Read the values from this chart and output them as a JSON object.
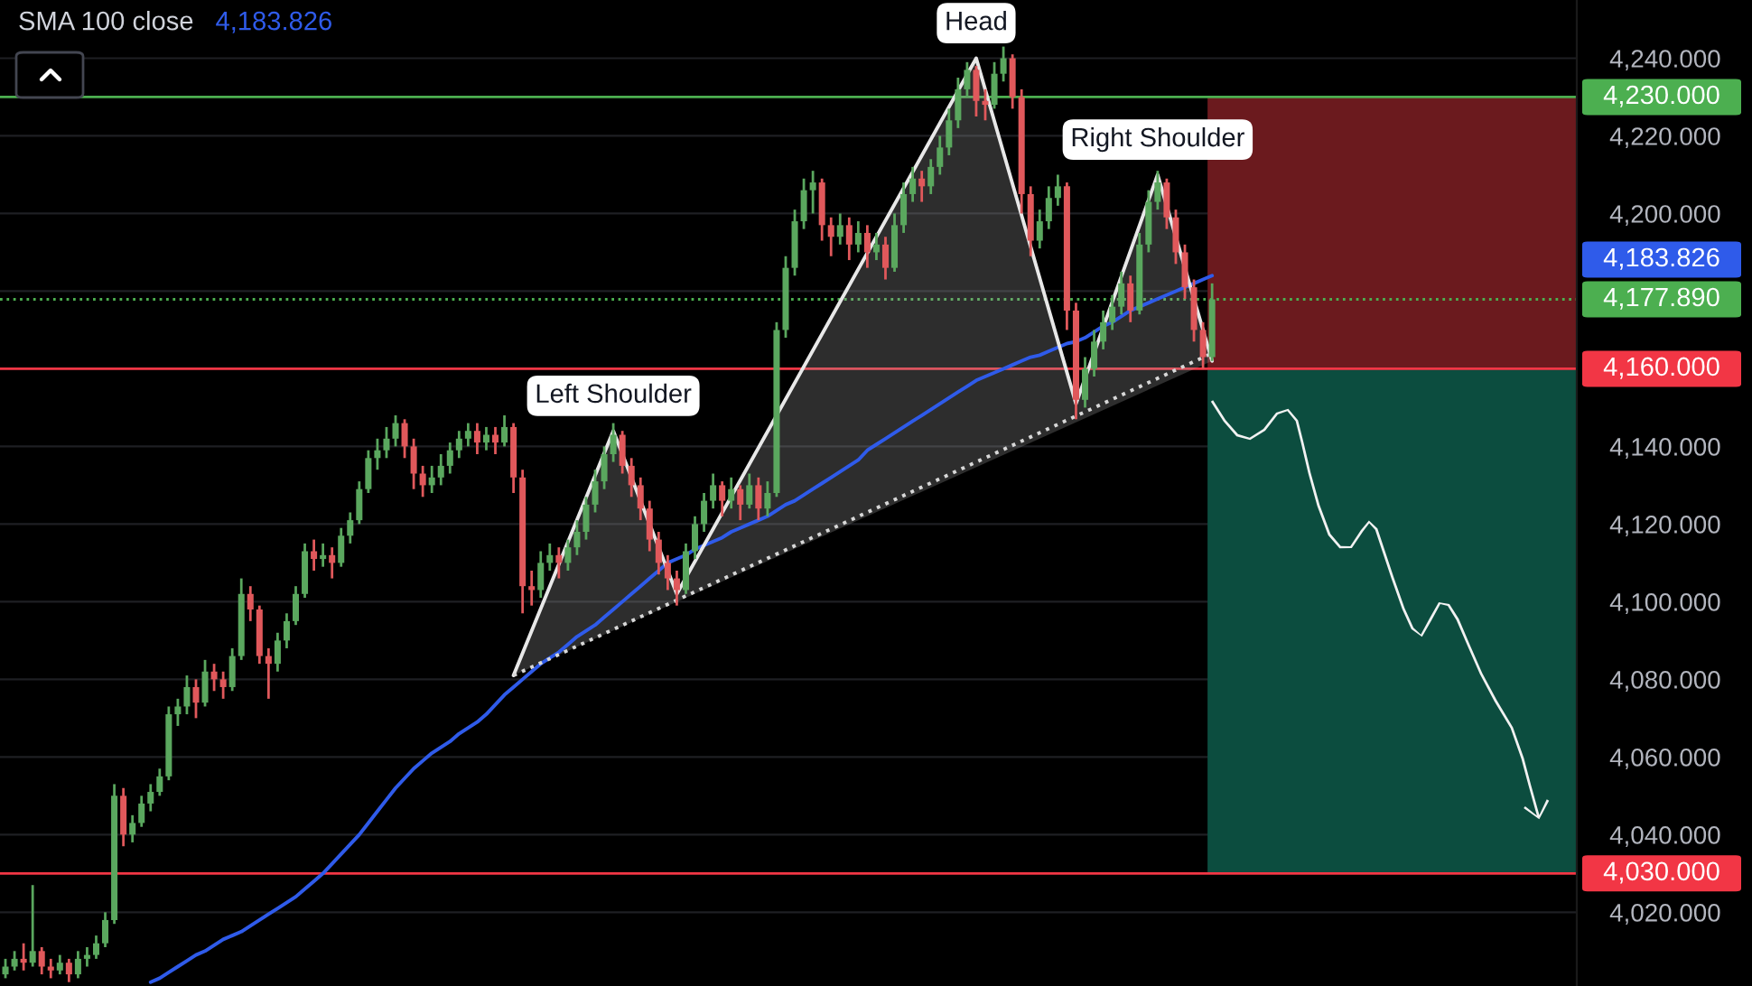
{
  "chart_data": {
    "type": "candlestick",
    "title": "SMA 100 close",
    "categories": [
      null,
      null,
      null,
      null,
      null,
      null,
      null,
      null,
      null,
      null,
      null,
      null,
      null,
      null,
      null,
      null,
      null,
      null,
      null,
      null,
      null,
      null,
      null,
      null,
      null,
      null,
      null,
      null,
      null,
      null,
      null,
      null,
      null,
      null,
      null,
      null,
      null,
      null,
      null,
      null,
      null,
      null,
      null,
      null,
      null,
      null,
      null,
      null,
      null,
      null,
      null,
      null,
      null,
      null,
      null,
      null,
      null,
      null,
      null,
      null,
      null,
      null,
      null,
      null,
      null,
      null,
      null,
      null,
      null,
      null,
      null,
      null,
      null,
      null,
      null,
      null,
      null,
      null,
      null,
      null,
      null,
      null,
      null,
      null,
      null,
      null,
      null,
      null,
      null,
      null,
      null,
      null,
      null,
      null,
      null,
      null,
      null,
      null,
      null,
      null,
      null,
      null,
      null,
      null,
      null,
      null,
      null,
      null,
      null,
      null,
      null,
      null,
      null,
      null,
      null,
      null,
      null,
      null,
      null,
      null,
      null,
      null,
      null,
      null,
      null,
      null,
      null,
      null,
      null,
      null,
      null,
      null,
      null,
      null
    ],
    "ohlc": [
      [
        4004,
        4008,
        4003,
        4006
      ],
      [
        4006,
        4010,
        4005,
        4008
      ],
      [
        4008,
        4012,
        4005,
        4007
      ],
      [
        4007,
        4027,
        4006,
        4010
      ],
      [
        4010,
        4011,
        4004,
        4006
      ],
      [
        4006,
        4008,
        4003,
        4005
      ],
      [
        4005,
        4009,
        4004,
        4007
      ],
      [
        4007,
        4008,
        4002,
        4004
      ],
      [
        4004,
        4010,
        4003,
        4008
      ],
      [
        4008,
        4011,
        4006,
        4009
      ],
      [
        4009,
        4014,
        4008,
        4012
      ],
      [
        4012,
        4020,
        4011,
        4018
      ],
      [
        4018,
        4053,
        4017,
        4050
      ],
      [
        4050,
        4052,
        4037,
        4040
      ],
      [
        4040,
        4045,
        4038,
        4043
      ],
      [
        4043,
        4050,
        4042,
        4048
      ],
      [
        4048,
        4053,
        4046,
        4051
      ],
      [
        4051,
        4057,
        4050,
        4055
      ],
      [
        4055,
        4073,
        4054,
        4071
      ],
      [
        4071,
        4075,
        4068,
        4073
      ],
      [
        4073,
        4081,
        4071,
        4078
      ],
      [
        4078,
        4080,
        4070,
        4074
      ],
      [
        4074,
        4085,
        4073,
        4082
      ],
      [
        4082,
        4084,
        4077,
        4080
      ],
      [
        4080,
        4082,
        4075,
        4078
      ],
      [
        4078,
        4088,
        4077,
        4086
      ],
      [
        4086,
        4106,
        4085,
        4102
      ],
      [
        4102,
        4104,
        4095,
        4098
      ],
      [
        4098,
        4099,
        4084,
        4086
      ],
      [
        4086,
        4088,
        4075,
        4084
      ],
      [
        4084,
        4092,
        4082,
        4090
      ],
      [
        4090,
        4097,
        4088,
        4095
      ],
      [
        4095,
        4104,
        4094,
        4102
      ],
      [
        4102,
        4115,
        4101,
        4113
      ],
      [
        4113,
        4116,
        4108,
        4111
      ],
      [
        4111,
        4115,
        4109,
        4112
      ],
      [
        4112,
        4114,
        4106,
        4110
      ],
      [
        4110,
        4119,
        4109,
        4117
      ],
      [
        4117,
        4123,
        4115,
        4121
      ],
      [
        4121,
        4131,
        4120,
        4129
      ],
      [
        4129,
        4139,
        4128,
        4137
      ],
      [
        4137,
        4142,
        4134,
        4139
      ],
      [
        4139,
        4145,
        4137,
        4142
      ],
      [
        4142,
        4148,
        4140,
        4146
      ],
      [
        4146,
        4147,
        4137,
        4140
      ],
      [
        4140,
        4142,
        4129,
        4133
      ],
      [
        4133,
        4135,
        4127,
        4130
      ],
      [
        4130,
        4135,
        4128,
        4132
      ],
      [
        4132,
        4138,
        4130,
        4135
      ],
      [
        4135,
        4141,
        4133,
        4139
      ],
      [
        4139,
        4144,
        4137,
        4142
      ],
      [
        4142,
        4146,
        4140,
        4144
      ],
      [
        4144,
        4146,
        4138,
        4141
      ],
      [
        4141,
        4145,
        4139,
        4143
      ],
      [
        4143,
        4145,
        4138,
        4141
      ],
      [
        4141,
        4148,
        4140,
        4145
      ],
      [
        4145,
        4146,
        4128,
        4132
      ],
      [
        4132,
        4134,
        4097,
        4104
      ],
      [
        4104,
        4108,
        4099,
        4103
      ],
      [
        4103,
        4113,
        4101,
        4110
      ],
      [
        4110,
        4115,
        4108,
        4112
      ],
      [
        4112,
        4114,
        4106,
        4110
      ],
      [
        4110,
        4116,
        4108,
        4114
      ],
      [
        4114,
        4121,
        4112,
        4118
      ],
      [
        4118,
        4127,
        4116,
        4125
      ],
      [
        4125,
        4134,
        4123,
        4131
      ],
      [
        4131,
        4140,
        4129,
        4138
      ],
      [
        4138,
        4146,
        4136,
        4143
      ],
      [
        4143,
        4144,
        4133,
        4135
      ],
      [
        4135,
        4137,
        4127,
        4130
      ],
      [
        4130,
        4132,
        4121,
        4124
      ],
      [
        4124,
        4126,
        4113,
        4116
      ],
      [
        4116,
        4118,
        4107,
        4110
      ],
      [
        4110,
        4112,
        4103,
        4106
      ],
      [
        4106,
        4108,
        4099,
        4103
      ],
      [
        4103,
        4115,
        4102,
        4113
      ],
      [
        4113,
        4122,
        4111,
        4120
      ],
      [
        4120,
        4128,
        4118,
        4126
      ],
      [
        4126,
        4133,
        4124,
        4130
      ],
      [
        4130,
        4131,
        4122,
        4126
      ],
      [
        4126,
        4132,
        4124,
        4129
      ],
      [
        4129,
        4130,
        4121,
        4125
      ],
      [
        4125,
        4133,
        4124,
        4130
      ],
      [
        4130,
        4132,
        4121,
        4124
      ],
      [
        4124,
        4131,
        4122,
        4128
      ],
      [
        4128,
        4172,
        4127,
        4170
      ],
      [
        4170,
        4189,
        4168,
        4186
      ],
      [
        4186,
        4201,
        4184,
        4198
      ],
      [
        4198,
        4209,
        4196,
        4206
      ],
      [
        4206,
        4211,
        4200,
        4208
      ],
      [
        4208,
        4209,
        4193,
        4197
      ],
      [
        4197,
        4199,
        4189,
        4194
      ],
      [
        4194,
        4200,
        4192,
        4197
      ],
      [
        4197,
        4199,
        4188,
        4192
      ],
      [
        4192,
        4198,
        4190,
        4195
      ],
      [
        4195,
        4197,
        4186,
        4190
      ],
      [
        4190,
        4195,
        4188,
        4192
      ],
      [
        4192,
        4194,
        4183,
        4186
      ],
      [
        4186,
        4200,
        4185,
        4197
      ],
      [
        4197,
        4208,
        4195,
        4205
      ],
      [
        4205,
        4212,
        4203,
        4209
      ],
      [
        4209,
        4211,
        4203,
        4207
      ],
      [
        4207,
        4214,
        4205,
        4212
      ],
      [
        4212,
        4220,
        4210,
        4217
      ],
      [
        4217,
        4227,
        4215,
        4224
      ],
      [
        4224,
        4235,
        4222,
        4232
      ],
      [
        4232,
        4239,
        4230,
        4237
      ],
      [
        4237,
        4238,
        4225,
        4229
      ],
      [
        4229,
        4232,
        4224,
        4228
      ],
      [
        4228,
        4239,
        4227,
        4236
      ],
      [
        4236,
        4243,
        4234,
        4240
      ],
      [
        4240,
        4241,
        4227,
        4230
      ],
      [
        4230,
        4232,
        4200,
        4205
      ],
      [
        4205,
        4207,
        4189,
        4193
      ],
      [
        4193,
        4201,
        4191,
        4198
      ],
      [
        4198,
        4207,
        4196,
        4204
      ],
      [
        4204,
        4210,
        4202,
        4207
      ],
      [
        4207,
        4208,
        4170,
        4175
      ],
      [
        4175,
        4177,
        4147,
        4152
      ],
      [
        4152,
        4163,
        4150,
        4160
      ],
      [
        4160,
        4170,
        4158,
        4167
      ],
      [
        4167,
        4175,
        4165,
        4172
      ],
      [
        4172,
        4179,
        4170,
        4176
      ],
      [
        4176,
        4185,
        4174,
        4182
      ],
      [
        4182,
        4184,
        4172,
        4175
      ],
      [
        4175,
        4195,
        4174,
        4192
      ],
      [
        4192,
        4206,
        4190,
        4203
      ],
      [
        4203,
        4211,
        4201,
        4208
      ],
      [
        4208,
        4209,
        4196,
        4199
      ],
      [
        4199,
        4201,
        4187,
        4190
      ],
      [
        4190,
        4192,
        4178,
        4181
      ],
      [
        4181,
        4183,
        4167,
        4170
      ],
      [
        4170,
        4172,
        4160,
        4163
      ],
      [
        4163,
        4182,
        4162,
        4177.89
      ]
    ],
    "series": [
      {
        "type": "line",
        "color": "#2f5bea",
        "line_style": "solid",
        "values": [
          null,
          null,
          null,
          null,
          null,
          null,
          null,
          null,
          null,
          null,
          null,
          null,
          null,
          null,
          null,
          null,
          4002,
          4003,
          4004.5,
          4006,
          4007.5,
          4009,
          4010,
          4011.5,
          4013,
          4014,
          4015,
          4016.5,
          4018,
          4019.5,
          4021,
          4022.5,
          4024,
          4026,
          4028,
          4030,
          4032.5,
          4035,
          4037.5,
          4040,
          4043,
          4046,
          4049,
          4052,
          4054.5,
          4057,
          4059,
          4061,
          4062.5,
          4064,
          4066,
          4067.5,
          4069,
          4071,
          4073.5,
          4076,
          4078,
          4080,
          4082,
          4084,
          4085.5,
          4087,
          4089,
          4091,
          4092.5,
          4094,
          4096,
          4098,
          4100,
          4102,
          4104,
          4106,
          4108,
          4110,
          4111,
          4112,
          4113.5,
          4114.5,
          4115.5,
          4116.5,
          4118,
          4119,
          4120,
          4121,
          4122,
          4123.5,
          4125,
          4126,
          4127.5,
          4129,
          4130.5,
          4132,
          4133.5,
          4135,
          4136.5,
          4139,
          4140.5,
          4142,
          4143.5,
          4145,
          4146.5,
          4148,
          4149.5,
          4151,
          4152.5,
          4154,
          4155.5,
          4157,
          4158,
          4159,
          4160,
          4161,
          4162,
          4163,
          4163.5,
          4164.5,
          4165.5,
          4166.5,
          4167,
          4168,
          4169.5,
          4171,
          4172,
          4173.5,
          4175,
          4176,
          4177,
          4178,
          4179,
          4180,
          4181,
          4182,
          4183,
          4184
        ]
      },
      {
        "type": "line",
        "color": "#e8e8e8",
        "line_style": "solid",
        "values": [
          null,
          null,
          null,
          null,
          null,
          null,
          null,
          null,
          null,
          null,
          null,
          null,
          null,
          null,
          null,
          null,
          null,
          null,
          null,
          null,
          null,
          null,
          null,
          null,
          null,
          null,
          null,
          null,
          null,
          null,
          null,
          null,
          null,
          null,
          null,
          null,
          null,
          null,
          null,
          null,
          null,
          null,
          null,
          null,
          null,
          null,
          null,
          null,
          null,
          null,
          null,
          null,
          null,
          null,
          null,
          null,
          4081,
          null,
          null,
          null,
          null,
          null,
          null,
          null,
          null,
          null,
          null,
          4144,
          null,
          null,
          null,
          null,
          null,
          null,
          4102,
          null,
          null,
          null,
          null,
          null,
          null,
          null,
          null,
          null,
          null,
          null,
          null,
          null,
          null,
          null,
          null,
          null,
          null,
          null,
          null,
          null,
          null,
          null,
          null,
          null,
          null,
          null,
          null,
          null,
          null,
          null,
          null,
          4240,
          null,
          null,
          null,
          null,
          null,
          null,
          null,
          null,
          null,
          null,
          4151,
          null,
          null,
          null,
          null,
          null,
          null,
          null,
          null,
          4210,
          null,
          null,
          null,
          null,
          null,
          4162
        ]
      },
      {
        "type": "line",
        "color": "#d8d8d8",
        "line_style": "dotted",
        "values": [
          null,
          null,
          null,
          null,
          null,
          null,
          null,
          null,
          null,
          null,
          null,
          null,
          null,
          null,
          null,
          null,
          null,
          null,
          null,
          null,
          null,
          null,
          null,
          null,
          null,
          null,
          null,
          null,
          null,
          null,
          null,
          null,
          null,
          null,
          null,
          null,
          null,
          null,
          null,
          null,
          null,
          null,
          null,
          null,
          null,
          null,
          null,
          null,
          null,
          null,
          null,
          null,
          null,
          null,
          null,
          null,
          4081,
          null,
          null,
          null,
          null,
          null,
          null,
          null,
          null,
          null,
          null,
          null,
          null,
          null,
          null,
          null,
          null,
          null,
          null,
          null,
          null,
          null,
          null,
          null,
          null,
          null,
          null,
          null,
          null,
          null,
          null,
          null,
          null,
          null,
          null,
          null,
          null,
          null,
          null,
          null,
          null,
          null,
          null,
          null,
          null,
          null,
          null,
          null,
          null,
          null,
          null,
          null,
          null,
          null,
          null,
          null,
          null,
          null,
          null,
          null,
          null,
          null,
          null,
          null,
          null,
          null,
          null,
          null,
          null,
          null,
          null,
          null,
          null,
          null,
          null,
          null,
          null,
          4164
        ]
      }
    ],
    "ylim": [
      4001,
      4255
    ],
    "yticks": [
      {
        "value": 4020,
        "label": "4,020.000"
      },
      {
        "value": 4040,
        "label": "4,040.000"
      },
      {
        "value": 4060,
        "label": "4,060.000"
      },
      {
        "value": 4080,
        "label": "4,080.000"
      },
      {
        "value": 4100,
        "label": "4,100.000"
      },
      {
        "value": 4120,
        "label": "4,120.000"
      },
      {
        "value": 4140,
        "label": "4,140.000"
      },
      {
        "value": 4160,
        "label": null
      },
      {
        "value": 4180,
        "label": null
      },
      {
        "value": 4200,
        "label": "4,200.000"
      },
      {
        "value": 4220,
        "label": "4,220.000"
      },
      {
        "value": 4240,
        "label": "4,240.000"
      }
    ],
    "grid": "y",
    "tick_labels": "y",
    "ref_lines": [
      {
        "axis": "y",
        "value": 4230,
        "label": "4,230.000",
        "color": "#4caf50",
        "line_style": "solid"
      },
      {
        "axis": "y",
        "value": 4177.89,
        "label": "4,177.890",
        "color": "#4caf50",
        "line_style": "dotted"
      },
      {
        "axis": "y",
        "value": 4160,
        "label": "4,160.000",
        "color": "#f23645",
        "line_style": "solid"
      },
      {
        "axis": "y",
        "value": 4030,
        "label": "4,030.000",
        "color": "#f23645",
        "line_style": "solid"
      }
    ],
    "annotations": [
      "4,183.826",
      "4,183.826",
      {
        "text": "Left Shoulder",
        "y": 4144
      },
      {
        "text": "Head",
        "y": 4240
      },
      {
        "text": "Right Shoulder",
        "y": 4210
      }
    ]
  }
}
